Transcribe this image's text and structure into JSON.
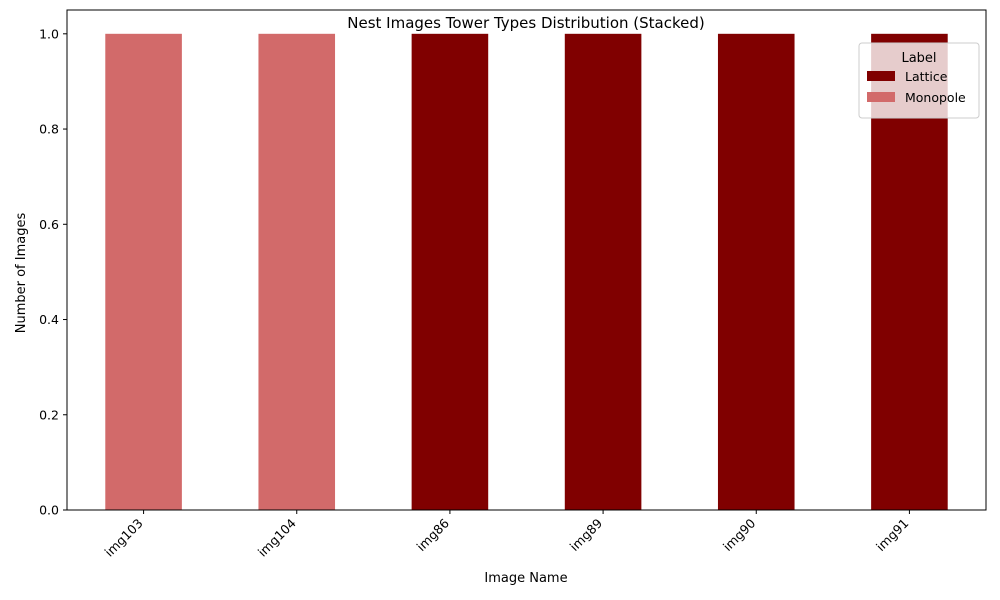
{
  "chart_data": {
    "type": "bar",
    "stacked": true,
    "title": "Nest Images Tower Types Distribution (Stacked)",
    "xlabel": "Image Name",
    "ylabel": "Number of Images",
    "categories": [
      "img103",
      "img104",
      "img86",
      "img89",
      "img90",
      "img91"
    ],
    "series": [
      {
        "name": "Lattice",
        "color": "#800000",
        "values": [
          0,
          0,
          1,
          1,
          1,
          1
        ]
      },
      {
        "name": "Monopole",
        "color": "#d26a6a",
        "values": [
          1,
          1,
          0,
          0,
          0,
          0
        ]
      }
    ],
    "ylim": [
      0,
      1.05
    ],
    "yticks": [
      "0.0",
      "0.2",
      "0.4",
      "0.6",
      "0.8",
      "1.0"
    ],
    "legend": {
      "title": "Label",
      "placement": "top-right"
    },
    "grid": false
  }
}
